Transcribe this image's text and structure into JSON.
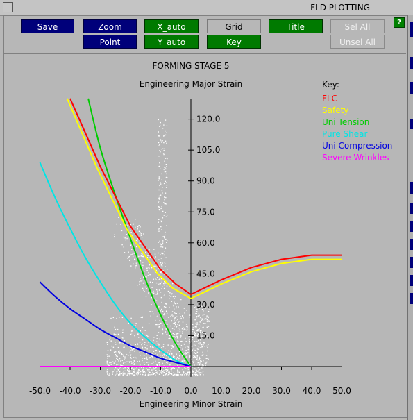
{
  "window": {
    "title": "FLD PLOTTING",
    "help_label": "?"
  },
  "toolbar": {
    "save": "Save",
    "zoom": "Zoom",
    "point": "Point",
    "x_auto": "X_auto",
    "y_auto": "Y_auto",
    "grid": "Grid",
    "key": "Key",
    "title": "Title",
    "sel_all": "Sel All",
    "unsel_all": "Unsel All"
  },
  "colors": {
    "background": "#b7b7b7",
    "button_blue": "#00007a",
    "button_green": "#007a00",
    "flc": "#ff0000",
    "safety": "#ffff00",
    "uni_tension": "#00cc00",
    "pure_shear": "#00e5e5",
    "uni_compression": "#0000e0",
    "severe_wrinkles": "#ff00ff",
    "points": "#ffffff"
  },
  "chart_data": {
    "type": "line",
    "title": "FORMING STAGE 5",
    "xlabel": "Engineering Minor Strain",
    "ylabel": "Engineering Major Strain",
    "xlim": [
      -50,
      50
    ],
    "ylim": [
      0,
      130
    ],
    "x_ticks": [
      "-50.0",
      "-40.0",
      "-30.0",
      "-20.0",
      "-10.0",
      "0.0",
      "10.0",
      "20.0",
      "30.0",
      "40.0",
      "50.0"
    ],
    "y_ticks": [
      "15.0",
      "30.0",
      "45.0",
      "60.0",
      "75.0",
      "90.0",
      "105.0",
      "120.0"
    ],
    "grid": false,
    "legend_title": "Key:",
    "legend_position": "top-right",
    "series": [
      {
        "name": "FLC",
        "color": "#ff0000",
        "x": [
          -40,
          -30,
          -20,
          -10,
          -5,
          0,
          10,
          20,
          30,
          40,
          50
        ],
        "y": [
          130,
          97,
          68,
          47,
          40,
          35,
          42,
          48,
          52,
          54,
          54
        ]
      },
      {
        "name": "Safety",
        "color": "#ffff00",
        "x": [
          -41,
          -31,
          -21,
          -11,
          -6,
          0,
          10,
          20,
          30,
          40,
          50
        ],
        "y": [
          130,
          96,
          66,
          45,
          38,
          33,
          40,
          46,
          50,
          52,
          52
        ]
      },
      {
        "name": "Uni Tension",
        "color": "#00cc00",
        "x": [
          -34,
          -30,
          -25,
          -20,
          -15,
          -10,
          -5,
          0
        ],
        "y": [
          130,
          106,
          83,
          62,
          42,
          25,
          11,
          0
        ]
      },
      {
        "name": "Pure Shear",
        "color": "#00e5e5",
        "x": [
          -50,
          -45,
          -40,
          -35,
          -30,
          -25,
          -20,
          -15,
          -10,
          -5,
          0
        ],
        "y": [
          99,
          82,
          67,
          53,
          41,
          30,
          21,
          14,
          8,
          3,
          0
        ]
      },
      {
        "name": "Uni Compression",
        "color": "#0000e0",
        "x": [
          -50,
          -45,
          -40,
          -35,
          -30,
          -25,
          -20,
          -15,
          -10,
          -5,
          0
        ],
        "y": [
          41,
          34,
          28,
          23,
          18,
          14,
          10,
          7,
          4,
          2,
          0
        ]
      },
      {
        "name": "Severe Wrinkles",
        "color": "#ff00ff",
        "x": [
          -50,
          0
        ],
        "y": [
          0,
          0
        ]
      }
    ],
    "scatter_points": {
      "color": "#ffffff",
      "description_range": {
        "x": [
          -34,
          6
        ],
        "y": [
          -8,
          120
        ]
      }
    }
  }
}
